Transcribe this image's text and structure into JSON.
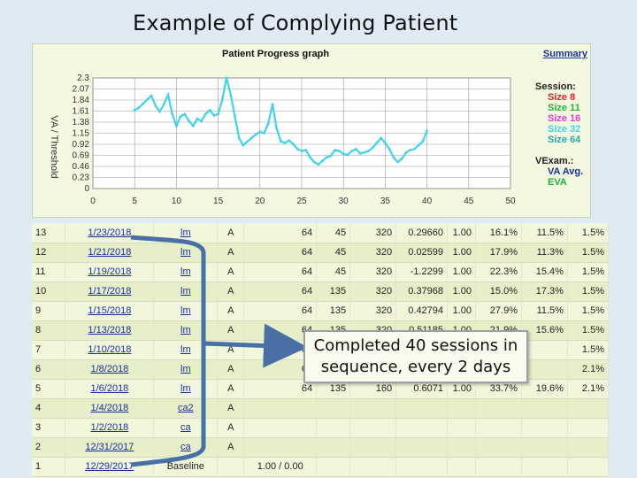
{
  "slide": {
    "title": "Example of Complying Patient"
  },
  "graph": {
    "title": "Patient Progress graph",
    "summary_link": "Summary",
    "ylabel": "VA / Threshold",
    "legend": {
      "session_header": "Session:",
      "sizes": [
        {
          "label": "Size 8",
          "color": "#e8212a"
        },
        {
          "label": "Size 11",
          "color": "#23b33a"
        },
        {
          "label": "Size 16",
          "color": "#e43ed6"
        },
        {
          "label": "Size 32",
          "color": "#3fd3ec"
        },
        {
          "label": "Size 64",
          "color": "#2aa8a8"
        }
      ],
      "vexam_header": "VExam.:",
      "exams": [
        {
          "label": "VA Avg.",
          "color": "#1a2f9e"
        },
        {
          "label": "EVA",
          "color": "#23b33a"
        }
      ]
    }
  },
  "chart_data": {
    "type": "line",
    "title": "Patient Progress graph",
    "xlabel": "",
    "ylabel": "VA / Threshold",
    "xlim": [
      0,
      50
    ],
    "ylim": [
      0,
      2.3
    ],
    "xticks": [
      "0",
      "5",
      "10",
      "15",
      "20",
      "25",
      "30",
      "35",
      "40",
      "45",
      "50"
    ],
    "yticks": [
      "0",
      "0.23",
      "0.46",
      "0.69",
      "0.92",
      "1.15",
      "1.38",
      "1.61",
      "1.84",
      "2.07",
      "2.3"
    ],
    "grid": true,
    "legend_position": "right",
    "series": [
      {
        "name": "Size 32",
        "color": "#3fd3ec",
        "x": [
          5,
          5.5,
          6,
          6.5,
          7,
          7.5,
          8,
          8.5,
          9,
          9.5,
          10,
          10.5,
          11,
          11.5,
          12,
          12.5,
          13,
          13.5,
          14,
          14.5,
          15,
          15.5,
          16,
          16.5,
          17,
          17.5,
          18,
          18.5,
          19,
          19.5,
          20,
          20.5,
          21,
          21.5,
          22,
          22.5,
          23,
          23.5,
          24,
          24.5,
          25,
          25.5,
          26,
          26.5,
          27,
          27.5,
          28,
          28.5,
          29,
          29.5,
          30,
          30.5,
          31,
          31.5,
          32,
          32.5,
          33,
          33.5,
          34,
          34.5,
          35,
          35.5,
          36,
          36.5,
          37,
          37.5,
          38,
          38.5,
          39,
          39.5,
          40
        ],
        "y": [
          1.63,
          1.68,
          1.76,
          1.85,
          1.93,
          1.72,
          1.6,
          1.75,
          1.95,
          1.55,
          1.3,
          1.5,
          1.55,
          1.4,
          1.3,
          1.45,
          1.4,
          1.55,
          1.63,
          1.52,
          1.55,
          1.85,
          2.3,
          1.95,
          1.5,
          1.05,
          0.9,
          0.98,
          1.05,
          1.12,
          1.18,
          1.15,
          1.35,
          1.75,
          1.25,
          0.98,
          0.95,
          1.0,
          0.92,
          0.82,
          0.78,
          0.8,
          0.65,
          0.55,
          0.5,
          0.58,
          0.65,
          0.68,
          0.8,
          0.78,
          0.72,
          0.7,
          0.78,
          0.82,
          0.73,
          0.75,
          0.78,
          0.85,
          0.95,
          1.05,
          0.95,
          0.82,
          0.65,
          0.55,
          0.62,
          0.75,
          0.8,
          0.82,
          0.9,
          0.98,
          1.2
        ]
      }
    ]
  },
  "table": {
    "rows": [
      {
        "num": "13",
        "date": "1/23/2018",
        "op": "lm",
        "a": "A",
        "v1": "64",
        "v2": "45",
        "v3": "320",
        "v4": "0.29660",
        "v5": "1.00",
        "v6": "16.1%",
        "v7": "11.5%",
        "v8": "1.5%"
      },
      {
        "num": "12",
        "date": "1/21/2018",
        "op": "lm",
        "a": "A",
        "v1": "64",
        "v2": "45",
        "v3": "320",
        "v4": "0.02599",
        "v5": "1.00",
        "v6": "17.9%",
        "v7": "11.3%",
        "v8": "1.5%"
      },
      {
        "num": "11",
        "date": "1/19/2018",
        "op": "lm",
        "a": "A",
        "v1": "64",
        "v2": "45",
        "v3": "320",
        "v4": "-1.2299",
        "v5": "1.00",
        "v6": "22.3%",
        "v7": "15.4%",
        "v8": "1.5%"
      },
      {
        "num": "10",
        "date": "1/17/2018",
        "op": "lm",
        "a": "A",
        "v1": "64",
        "v2": "135",
        "v3": "320",
        "v4": "0.37968",
        "v5": "1.00",
        "v6": "15.0%",
        "v7": "17.3%",
        "v8": "1.5%"
      },
      {
        "num": "9",
        "date": "1/15/2018",
        "op": "lm",
        "a": "A",
        "v1": "64",
        "v2": "135",
        "v3": "320",
        "v4": "0.42794",
        "v5": "1.00",
        "v6": "27.9%",
        "v7": "11.5%",
        "v8": "1.5%"
      },
      {
        "num": "8",
        "date": "1/13/2018",
        "op": "lm",
        "a": "A",
        "v1": "64",
        "v2": "135",
        "v3": "320",
        "v4": "0.51185",
        "v5": "1.00",
        "v6": "21.9%",
        "v7": "15.6%",
        "v8": "1.5%"
      },
      {
        "num": "7",
        "date": "1/10/2018",
        "op": "lm",
        "a": "A",
        "v1": "64",
        "v2": "",
        "v3": "",
        "v4": "",
        "v5": "",
        "v6": "",
        "v7": "",
        "v8": "1.5%"
      },
      {
        "num": "6",
        "date": "1/8/2018",
        "op": "lm",
        "a": "A",
        "v1": "64",
        "v2": "",
        "v3": "",
        "v4": "",
        "v5": "",
        "v6": "",
        "v7": "",
        "v8": "2.1%"
      },
      {
        "num": "5",
        "date": "1/6/2018",
        "op": "lm",
        "a": "A",
        "v1": "64",
        "v2": "135",
        "v3": "160",
        "v4": "0.6071",
        "v5": "1.00",
        "v6": "33.7%",
        "v7": "19.6%",
        "v8": "2.1%"
      },
      {
        "num": "4",
        "date": "1/4/2018",
        "op": "ca2",
        "a": "A",
        "v1": "",
        "v2": "",
        "v3": "",
        "v4": "",
        "v5": "",
        "v6": "",
        "v7": "",
        "v8": ""
      },
      {
        "num": "3",
        "date": "1/2/2018",
        "op": "ca",
        "a": "A",
        "v1": "",
        "v2": "",
        "v3": "",
        "v4": "",
        "v5": "",
        "v6": "",
        "v7": "",
        "v8": ""
      },
      {
        "num": "2",
        "date": "12/31/2017",
        "op": "ca",
        "a": "A",
        "v1": "",
        "v2": "",
        "v3": "",
        "v4": "",
        "v5": "",
        "v6": "",
        "v7": "",
        "v8": ""
      },
      {
        "num": "1",
        "date": "12/29/2017",
        "op": "Baseline",
        "a": "",
        "v1": "1.00  /  0.00",
        "v2": "",
        "v3": "",
        "v4": "",
        "v5": "",
        "v6": "",
        "v7": "",
        "v8": ""
      }
    ]
  },
  "callout": {
    "line1": "Completed 40 sessions in",
    "line2": "sequence, every 2 days"
  }
}
